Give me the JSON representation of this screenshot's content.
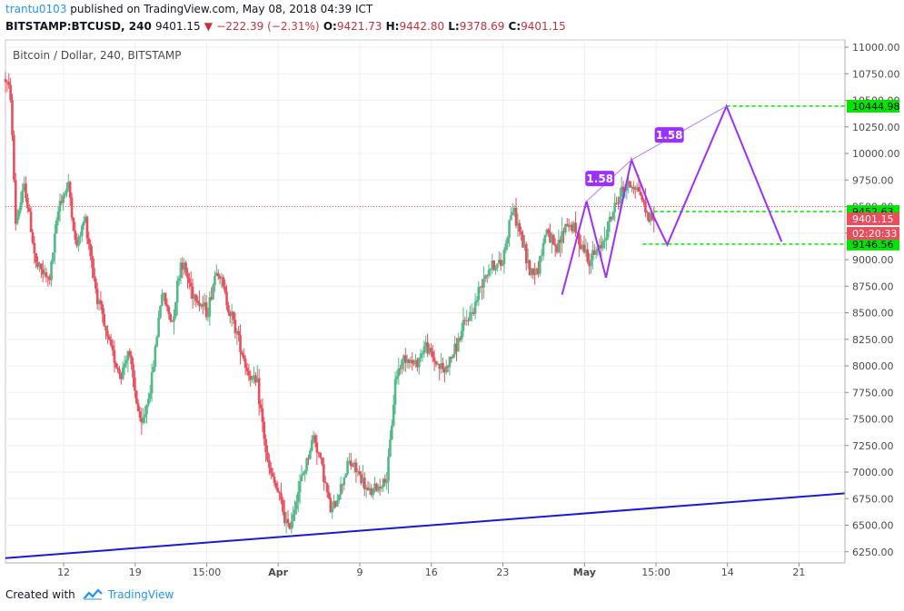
{
  "header": {
    "username": "trantu0103",
    "published_text": "published on TradingView.com, May 08, 2018 04:39 ICT",
    "symbol": "BITSTAMP:BTCUSD, 240",
    "last": "9401.15",
    "change": "−222.39 (−2.31%)",
    "open_label": "O:",
    "open": "9421.73",
    "high_label": "H:",
    "high": "9442.80",
    "low_label": "L:",
    "low": "9378.69",
    "close_label": "C:",
    "close": "9401.15"
  },
  "footer": {
    "created_with": "Created with",
    "brand": "TradingView"
  },
  "colors": {
    "up": "#53b987",
    "down": "#eb4d5c",
    "pattern": "#9b30ff",
    "trendline": "#1a1ad4",
    "target_line": "#00e600",
    "label_green": "#00e600",
    "price_label": "#eb4d5c"
  },
  "chart_data": {
    "type": "candlestick",
    "title": "Bitcoin / Dollar, 240, BITSTAMP",
    "ylim": [
      6050,
      11100
    ],
    "y_ticks": [
      {
        "value": 11000,
        "label": "11000.00"
      },
      {
        "value": 10750,
        "label": "10750.00"
      },
      {
        "value": 10500,
        "label": "10500.00"
      },
      {
        "value": 10250,
        "label": "10250.00"
      },
      {
        "value": 10000,
        "label": "10000.00"
      },
      {
        "value": 9750,
        "label": "9750.00"
      },
      {
        "value": 9500,
        "label": "9500.00"
      },
      {
        "value": 9250,
        "label": "9250.00"
      },
      {
        "value": 9000,
        "label": "9000.00"
      },
      {
        "value": 8750,
        "label": "8750.00"
      },
      {
        "value": 8500,
        "label": "8500.00"
      },
      {
        "value": 8250,
        "label": "8250.00"
      },
      {
        "value": 8000,
        "label": "8000.00"
      },
      {
        "value": 7750,
        "label": "7750.00"
      },
      {
        "value": 7500,
        "label": "7500.00"
      },
      {
        "value": 7250,
        "label": "7250.00"
      },
      {
        "value": 7000,
        "label": "7000.00"
      },
      {
        "value": 6750,
        "label": "6750.00"
      },
      {
        "value": 6500,
        "label": "6500.00"
      },
      {
        "value": 6250,
        "label": "6250.00"
      }
    ],
    "x_ticks": [
      {
        "day": 12,
        "label": "12"
      },
      {
        "day": 19,
        "label": "19"
      },
      {
        "day": 26,
        "label": "15:00"
      },
      {
        "day": 33,
        "label": "Apr"
      },
      {
        "day": 41,
        "label": "9"
      },
      {
        "day": 48,
        "label": "16"
      },
      {
        "day": 55,
        "label": "23"
      },
      {
        "day": 63,
        "label": "May"
      },
      {
        "day": 70,
        "label": "15:00"
      },
      {
        "day": 77,
        "label": "14"
      },
      {
        "day": 84,
        "label": "21"
      }
    ],
    "x_range_days": [
      6.3,
      88.5
    ],
    "price_waypoints": [
      [
        6.3,
        10700
      ],
      [
        6.8,
        10550
      ],
      [
        7.3,
        9350
      ],
      [
        8.2,
        9700
      ],
      [
        9.3,
        8950
      ],
      [
        10.6,
        8800
      ],
      [
        11.6,
        9550
      ],
      [
        12.5,
        9700
      ],
      [
        13.2,
        9100
      ],
      [
        14.1,
        9400
      ],
      [
        15.1,
        8750
      ],
      [
        16.1,
        8300
      ],
      [
        17.6,
        7900
      ],
      [
        18.3,
        8150
      ],
      [
        19.6,
        7400
      ],
      [
        20.6,
        7850
      ],
      [
        21.6,
        8700
      ],
      [
        22.6,
        8400
      ],
      [
        23.5,
        9000
      ],
      [
        24.6,
        8700
      ],
      [
        26.1,
        8500
      ],
      [
        27.0,
        8950
      ],
      [
        28.0,
        8600
      ],
      [
        29.0,
        8300
      ],
      [
        30.0,
        7950
      ],
      [
        31.0,
        7800
      ],
      [
        32.0,
        7050
      ],
      [
        33.0,
        6800
      ],
      [
        34.0,
        6450
      ],
      [
        34.9,
        6800
      ],
      [
        35.8,
        7100
      ],
      [
        36.5,
        7350
      ],
      [
        37.3,
        7050
      ],
      [
        38.2,
        6600
      ],
      [
        39.1,
        6850
      ],
      [
        39.9,
        7100
      ],
      [
        40.8,
        7000
      ],
      [
        41.8,
        6800
      ],
      [
        42.7,
        6850
      ],
      [
        43.7,
        6950
      ],
      [
        44.5,
        7900
      ],
      [
        45.4,
        8100
      ],
      [
        46.4,
        8000
      ],
      [
        47.4,
        8200
      ],
      [
        48.3,
        8050
      ],
      [
        49.3,
        7950
      ],
      [
        50.3,
        8150
      ],
      [
        51.3,
        8400
      ],
      [
        52.2,
        8550
      ],
      [
        53.1,
        8850
      ],
      [
        53.9,
        8950
      ],
      [
        54.9,
        8950
      ],
      [
        55.9,
        9500
      ],
      [
        56.7,
        9250
      ],
      [
        57.6,
        8900
      ],
      [
        58.4,
        8900
      ],
      [
        59.3,
        9300
      ],
      [
        60.2,
        9050
      ],
      [
        61.2,
        9350
      ],
      [
        61.9,
        9300
      ],
      [
        62.7,
        9150
      ],
      [
        63.5,
        9000
      ],
      [
        64.5,
        9100
      ],
      [
        65.4,
        9350
      ],
      [
        66.4,
        9600
      ],
      [
        67.1,
        9700
      ],
      [
        67.8,
        9700
      ],
      [
        68.4,
        9650
      ],
      [
        69.2,
        9400
      ],
      [
        69.8,
        9400
      ]
    ],
    "pattern_line": [
      [
        60.8,
        8670
      ],
      [
        63.2,
        9550
      ],
      [
        65.1,
        8830
      ],
      [
        67.6,
        9940
      ],
      [
        69.7,
        9420
      ],
      [
        71.1,
        9140
      ],
      [
        76.9,
        10444.98
      ],
      [
        82.3,
        9170
      ]
    ],
    "pattern_labels": [
      {
        "text": "1.58",
        "day": 64.5,
        "price": 9760
      },
      {
        "text": "1.58",
        "day": 71.3,
        "price": 10170
      }
    ],
    "trendline": [
      [
        6.3,
        6190
      ],
      [
        88.5,
        6800
      ]
    ],
    "current_price_line": 9500,
    "levels": [
      {
        "value": 10444.98,
        "label": "10444.98",
        "from_day": 76.9
      },
      {
        "value": 9452.63,
        "label": "9452.63",
        "from_day": 69.8
      },
      {
        "value": 9146.56,
        "label": "9146.56",
        "from_day": 68.7
      }
    ],
    "current_label": {
      "value": 9401.15,
      "label": "9401.15",
      "countdown": "02:20:33"
    }
  }
}
